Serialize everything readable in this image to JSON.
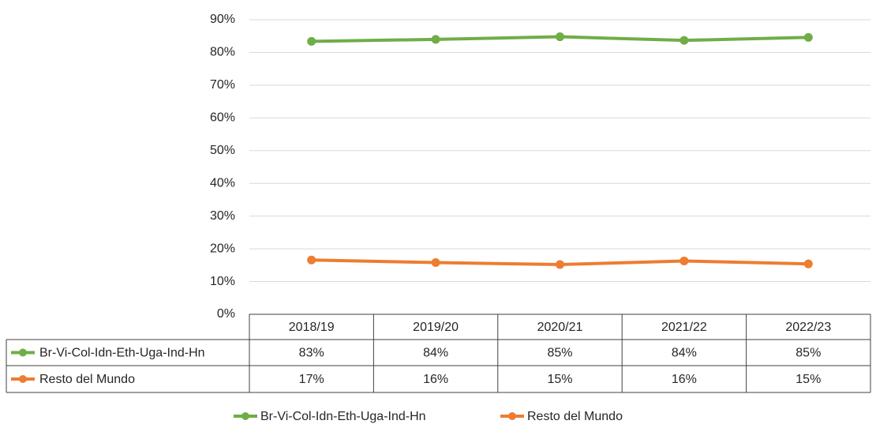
{
  "chart_data": {
    "type": "line",
    "categories": [
      "2018/19",
      "2019/20",
      "2020/21",
      "2021/22",
      "2022/23"
    ],
    "series": [
      {
        "name": "Br-Vi-Col-Idn-Eth-Uga-Ind-Hn",
        "color": "#70ad47",
        "values": [
          83.4,
          84.0,
          84.8,
          83.7,
          84.6
        ],
        "value_labels": [
          "83%",
          "84%",
          "85%",
          "84%",
          "85%"
        ]
      },
      {
        "name": "Resto del Mundo",
        "color": "#ed7d31",
        "values": [
          16.6,
          15.8,
          15.2,
          16.3,
          15.4
        ],
        "value_labels": [
          "17%",
          "16%",
          "15%",
          "16%",
          "15%"
        ]
      }
    ],
    "ylim": [
      0,
      90
    ],
    "yticks": [
      {
        "value": 0,
        "label": "0%"
      },
      {
        "value": 10,
        "label": "10%"
      },
      {
        "value": 20,
        "label": "20%"
      },
      {
        "value": 30,
        "label": "30%"
      },
      {
        "value": 40,
        "label": "40%"
      },
      {
        "value": 50,
        "label": "50%"
      },
      {
        "value": 60,
        "label": "60%"
      },
      {
        "value": 70,
        "label": "70%"
      },
      {
        "value": 80,
        "label": "80%"
      },
      {
        "value": 90,
        "label": "90%"
      }
    ],
    "grid": true,
    "legend": "bottom"
  }
}
